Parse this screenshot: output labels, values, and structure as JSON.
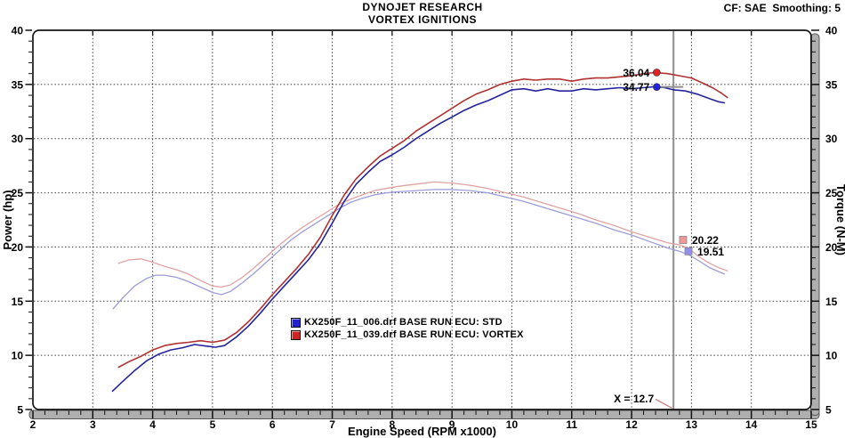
{
  "header": {
    "title_line1": "DYNOJET RESEARCH",
    "title_line2": "VORTEX IGNITIONS",
    "correction_info": "CF: SAE  Smoothing: 5"
  },
  "chart_data": {
    "type": "line",
    "title": "DYNOJET RESEARCH - VORTEX IGNITIONS",
    "xlabel": "Engine Speed (RPM x1000)",
    "ylabel_left": "Power (hp)",
    "ylabel_right": "Torque (N-M)",
    "xlim": [
      2,
      15
    ],
    "ylim": [
      5,
      40
    ],
    "x_major_ticks": [
      2,
      3,
      4,
      5,
      6,
      7,
      8,
      9,
      10,
      11,
      12,
      13,
      14,
      15
    ],
    "x_minor_step": 0.2,
    "y_major_ticks": [
      5,
      10,
      15,
      20,
      25,
      30,
      35,
      40
    ],
    "y_minor_step": 1,
    "grid": {
      "vertical_at": [
        3,
        4,
        5,
        6,
        7,
        8,
        9,
        10,
        11,
        12,
        13,
        14
      ],
      "horizontal_at": [
        10,
        15,
        20,
        25,
        30,
        35
      ]
    },
    "cursor": {
      "x": 12.7,
      "label": "X = 12.7"
    },
    "legend": {
      "items": [
        {
          "label": "KX250F_11_006.drf BASE RUN ECU: STD",
          "color": "#2323cc"
        },
        {
          "label": "KX250F_11_039.drf BASE RUN ECU: VORTEX",
          "color": "#cc2323"
        }
      ]
    },
    "series": [
      {
        "id": "torque-std",
        "name": "Torque STD (N-M)",
        "color": "#9c9cda",
        "width": 1.3,
        "points": [
          [
            3.34,
            14.3
          ],
          [
            3.5,
            15.3
          ],
          [
            3.7,
            16.4
          ],
          [
            3.9,
            17.1
          ],
          [
            4.05,
            17.4
          ],
          [
            4.2,
            17.4
          ],
          [
            4.4,
            17.2
          ],
          [
            4.6,
            16.8
          ],
          [
            4.8,
            16.3
          ],
          [
            5.0,
            15.8
          ],
          [
            5.15,
            15.6
          ],
          [
            5.3,
            15.9
          ],
          [
            5.5,
            16.7
          ],
          [
            5.7,
            17.6
          ],
          [
            5.9,
            18.6
          ],
          [
            6.1,
            19.6
          ],
          [
            6.3,
            20.6
          ],
          [
            6.5,
            21.4
          ],
          [
            6.7,
            22.1
          ],
          [
            6.9,
            22.8
          ],
          [
            7.1,
            23.5
          ],
          [
            7.3,
            24.1
          ],
          [
            7.5,
            24.5
          ],
          [
            7.7,
            24.8
          ],
          [
            7.9,
            25.0
          ],
          [
            8.1,
            25.1
          ],
          [
            8.4,
            25.2
          ],
          [
            8.7,
            25.3
          ],
          [
            9.0,
            25.3
          ],
          [
            9.3,
            25.2
          ],
          [
            9.6,
            25.0
          ],
          [
            9.9,
            24.6
          ],
          [
            10.2,
            24.2
          ],
          [
            10.5,
            23.7
          ],
          [
            10.8,
            23.2
          ],
          [
            11.1,
            22.7
          ],
          [
            11.4,
            22.2
          ],
          [
            11.7,
            21.6
          ],
          [
            12.0,
            21.1
          ],
          [
            12.3,
            20.5
          ],
          [
            12.6,
            19.9
          ],
          [
            12.8,
            19.6
          ],
          [
            12.95,
            19.3
          ],
          [
            13.1,
            18.8
          ],
          [
            13.3,
            18.1
          ],
          [
            13.55,
            17.5
          ]
        ]
      },
      {
        "id": "torque-vortex",
        "name": "Torque VORTEX (N-M)",
        "color": "#e0a2a2",
        "width": 1.3,
        "points": [
          [
            3.43,
            18.5
          ],
          [
            3.6,
            18.8
          ],
          [
            3.8,
            18.9
          ],
          [
            4.0,
            18.6
          ],
          [
            4.2,
            18.2
          ],
          [
            4.4,
            17.9
          ],
          [
            4.6,
            17.5
          ],
          [
            4.8,
            16.9
          ],
          [
            5.0,
            16.4
          ],
          [
            5.15,
            16.3
          ],
          [
            5.3,
            16.5
          ],
          [
            5.5,
            17.2
          ],
          [
            5.7,
            18.1
          ],
          [
            5.9,
            19.1
          ],
          [
            6.1,
            20.1
          ],
          [
            6.3,
            21.0
          ],
          [
            6.5,
            21.8
          ],
          [
            6.7,
            22.5
          ],
          [
            6.9,
            23.2
          ],
          [
            7.1,
            23.9
          ],
          [
            7.3,
            24.4
          ],
          [
            7.5,
            24.8
          ],
          [
            7.7,
            25.2
          ],
          [
            7.9,
            25.4
          ],
          [
            8.1,
            25.6
          ],
          [
            8.4,
            25.8
          ],
          [
            8.7,
            26.0
          ],
          [
            9.0,
            25.9
          ],
          [
            9.3,
            25.7
          ],
          [
            9.6,
            25.4
          ],
          [
            9.9,
            25.0
          ],
          [
            10.2,
            24.6
          ],
          [
            10.5,
            24.1
          ],
          [
            10.8,
            23.6
          ],
          [
            11.1,
            23.1
          ],
          [
            11.4,
            22.5
          ],
          [
            11.7,
            22.0
          ],
          [
            12.0,
            21.4
          ],
          [
            12.3,
            20.9
          ],
          [
            12.6,
            20.4
          ],
          [
            12.8,
            20.2
          ],
          [
            12.95,
            19.9
          ],
          [
            13.1,
            19.2
          ],
          [
            13.3,
            18.5
          ],
          [
            13.45,
            18.1
          ],
          [
            13.6,
            17.8
          ]
        ]
      },
      {
        "id": "power-std",
        "name": "Power STD (hp)",
        "color": "#24249c",
        "width": 1.6,
        "points": [
          [
            3.33,
            6.7
          ],
          [
            3.5,
            7.6
          ],
          [
            3.7,
            8.6
          ],
          [
            3.9,
            9.5
          ],
          [
            4.1,
            10.1
          ],
          [
            4.3,
            10.5
          ],
          [
            4.5,
            10.7
          ],
          [
            4.7,
            11.0
          ],
          [
            4.9,
            10.85
          ],
          [
            5.05,
            10.75
          ],
          [
            5.2,
            10.9
          ],
          [
            5.4,
            11.7
          ],
          [
            5.6,
            12.7
          ],
          [
            5.8,
            13.9
          ],
          [
            6.0,
            15.2
          ],
          [
            6.2,
            16.4
          ],
          [
            6.4,
            17.6
          ],
          [
            6.6,
            18.8
          ],
          [
            6.8,
            20.3
          ],
          [
            7.0,
            22.2
          ],
          [
            7.2,
            24.2
          ],
          [
            7.4,
            25.8
          ],
          [
            7.6,
            26.9
          ],
          [
            7.8,
            27.9
          ],
          [
            8.0,
            28.5
          ],
          [
            8.2,
            29.2
          ],
          [
            8.4,
            30.0
          ],
          [
            8.6,
            30.7
          ],
          [
            8.8,
            31.4
          ],
          [
            9.0,
            32.0
          ],
          [
            9.2,
            32.6
          ],
          [
            9.4,
            33.1
          ],
          [
            9.6,
            33.5
          ],
          [
            9.8,
            34.0
          ],
          [
            10.0,
            34.5
          ],
          [
            10.2,
            34.6
          ],
          [
            10.4,
            34.4
          ],
          [
            10.6,
            34.6
          ],
          [
            10.8,
            34.4
          ],
          [
            11.0,
            34.4
          ],
          [
            11.2,
            34.6
          ],
          [
            11.4,
            34.5
          ],
          [
            11.6,
            34.6
          ],
          [
            11.8,
            34.7
          ],
          [
            12.0,
            34.6
          ],
          [
            12.2,
            34.7
          ],
          [
            12.4,
            34.8
          ],
          [
            12.55,
            34.7
          ],
          [
            12.7,
            34.5
          ],
          [
            12.9,
            34.4
          ],
          [
            13.1,
            34.1
          ],
          [
            13.3,
            33.7
          ],
          [
            13.45,
            33.4
          ],
          [
            13.55,
            33.3
          ]
        ]
      },
      {
        "id": "power-vortex",
        "name": "Power VORTEX (hp)",
        "color": "#b03232",
        "width": 1.6,
        "points": [
          [
            3.43,
            8.9
          ],
          [
            3.6,
            9.4
          ],
          [
            3.8,
            9.9
          ],
          [
            4.0,
            10.5
          ],
          [
            4.2,
            10.9
          ],
          [
            4.4,
            11.1
          ],
          [
            4.6,
            11.2
          ],
          [
            4.8,
            11.35
          ],
          [
            5.0,
            11.2
          ],
          [
            5.2,
            11.4
          ],
          [
            5.4,
            12.1
          ],
          [
            5.6,
            13.1
          ],
          [
            5.8,
            14.3
          ],
          [
            6.0,
            15.6
          ],
          [
            6.2,
            16.8
          ],
          [
            6.4,
            18.0
          ],
          [
            6.6,
            19.3
          ],
          [
            6.8,
            20.9
          ],
          [
            7.0,
            22.9
          ],
          [
            7.2,
            24.8
          ],
          [
            7.4,
            26.3
          ],
          [
            7.6,
            27.4
          ],
          [
            7.8,
            28.4
          ],
          [
            8.0,
            29.1
          ],
          [
            8.2,
            29.8
          ],
          [
            8.4,
            30.7
          ],
          [
            8.6,
            31.4
          ],
          [
            8.8,
            32.1
          ],
          [
            9.0,
            32.8
          ],
          [
            9.2,
            33.5
          ],
          [
            9.4,
            34.1
          ],
          [
            9.6,
            34.5
          ],
          [
            9.8,
            35.0
          ],
          [
            10.0,
            35.3
          ],
          [
            10.2,
            35.5
          ],
          [
            10.4,
            35.4
          ],
          [
            10.6,
            35.5
          ],
          [
            10.8,
            35.5
          ],
          [
            11.0,
            35.3
          ],
          [
            11.2,
            35.5
          ],
          [
            11.4,
            35.6
          ],
          [
            11.6,
            35.6
          ],
          [
            11.8,
            35.7
          ],
          [
            12.0,
            35.8
          ],
          [
            12.2,
            36.0
          ],
          [
            12.4,
            36.1
          ],
          [
            12.6,
            36.0
          ],
          [
            12.8,
            35.8
          ],
          [
            13.0,
            35.6
          ],
          [
            13.2,
            35.1
          ],
          [
            13.35,
            34.7
          ],
          [
            13.5,
            34.2
          ],
          [
            13.6,
            33.8
          ]
        ]
      }
    ],
    "point_markers": [
      {
        "id": "max-power-vortex",
        "shape": "circle",
        "color": "#e52020",
        "x": 12.42,
        "y": 36.1,
        "label": "36.04",
        "label_side": "left"
      },
      {
        "id": "max-power-std",
        "shape": "circle",
        "color": "#2222e0",
        "x": 12.42,
        "y": 34.77,
        "label": "34.77",
        "label_side": "left",
        "tail_to_cursor": true
      },
      {
        "id": "torque-vortex-at-cursor",
        "shape": "square",
        "color": "#f09898",
        "x": 12.86,
        "y": 20.65,
        "label": "20.22",
        "label_side": "right"
      },
      {
        "id": "torque-std-at-cursor",
        "shape": "square",
        "color": "#9090ea",
        "x": 12.95,
        "y": 19.6,
        "label": "19.51",
        "label_side": "right"
      }
    ],
    "palette": {
      "grid": "#3d3d3d",
      "frame": "#151515",
      "band_fill": "#afafaf",
      "band_edge": "#555555",
      "tick": "#111111",
      "cursor": "#8f8f8f",
      "annotation_pointer": "#c87070"
    }
  }
}
